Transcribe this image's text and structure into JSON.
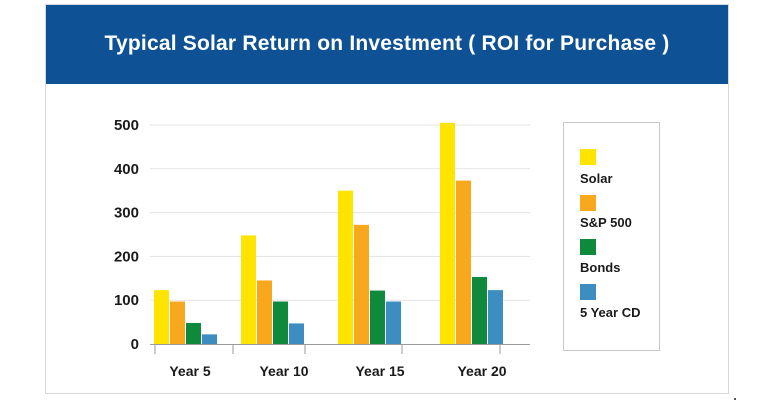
{
  "colors": {
    "header_bg": "#0e5194",
    "solar": "#ffe400",
    "sp500": "#f8a81c",
    "bonds": "#0f8a3c",
    "cd": "#3d8ec0",
    "grid": "#e3e3e3"
  },
  "chart_data": {
    "type": "bar",
    "title": "Typical Solar Return on Investment ( ROI for Purchase )",
    "xlabel": "",
    "ylabel": "",
    "categories": [
      "Year 5",
      "Year 10",
      "Year 15",
      "Year 20"
    ],
    "series": [
      {
        "name": "Solar",
        "color": "#ffe400",
        "values": [
          123,
          248,
          350,
          505
        ]
      },
      {
        "name": "S&P 500",
        "color": "#f8a81c",
        "values": [
          97,
          145,
          272,
          373
        ]
      },
      {
        "name": "Bonds",
        "color": "#0f8a3c",
        "values": [
          48,
          97,
          122,
          153
        ]
      },
      {
        "name": "5 Year CD",
        "color": "#3d8ec0",
        "values": [
          22,
          47,
          97,
          123
        ]
      }
    ],
    "ylim": [
      0,
      500
    ],
    "yticks": [
      0,
      100,
      200,
      300,
      400,
      500
    ],
    "grid": true,
    "legend": "right"
  }
}
